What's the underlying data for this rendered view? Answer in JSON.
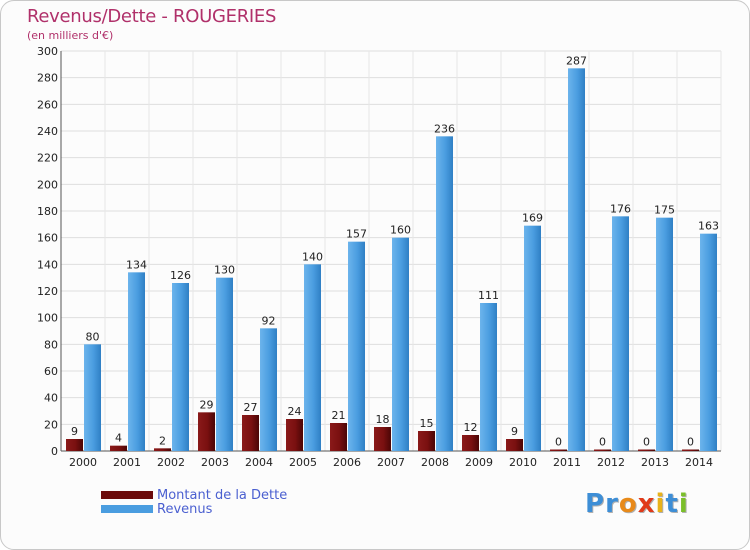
{
  "header": {
    "title": "Revenus/Dette - ROUGERIES",
    "subtitle": "(en milliers d'€)"
  },
  "chart_data": {
    "type": "bar",
    "title": "Revenus/Dette - ROUGERIES",
    "subtitle": "(en milliers d'€)",
    "xlabel": "",
    "ylabel": "",
    "ylim": [
      0,
      300
    ],
    "ytick_step": 20,
    "grid": true,
    "legend_position": "bottom-left",
    "categories": [
      "2000",
      "2001",
      "2002",
      "2003",
      "2004",
      "2005",
      "2006",
      "2007",
      "2008",
      "2009",
      "2010",
      "2011",
      "2012",
      "2013",
      "2014"
    ],
    "series": [
      {
        "name": "Montant de la Dette",
        "color": "#7a1010",
        "values": [
          9,
          4,
          2,
          29,
          27,
          24,
          21,
          18,
          15,
          12,
          9,
          0,
          0,
          0,
          0
        ]
      },
      {
        "name": "Revenus",
        "color": "#4a9de0",
        "values": [
          80,
          134,
          126,
          130,
          92,
          140,
          157,
          160,
          236,
          111,
          169,
          287,
          176,
          175,
          163
        ]
      }
    ]
  },
  "legend": {
    "items": [
      {
        "label": "Montant de la Dette",
        "color": "#6b0a0a"
      },
      {
        "label": "Revenus",
        "color": "#4a9de0"
      }
    ]
  },
  "logo": {
    "letters": [
      "P",
      "r",
      "o",
      "x",
      "i",
      "t",
      "i"
    ],
    "colors": [
      "#3d8ed6",
      "#3d8ed6",
      "#e88a1a",
      "#e03a1a",
      "#e8b21a",
      "#3d8ed6",
      "#7bbf2a"
    ]
  }
}
